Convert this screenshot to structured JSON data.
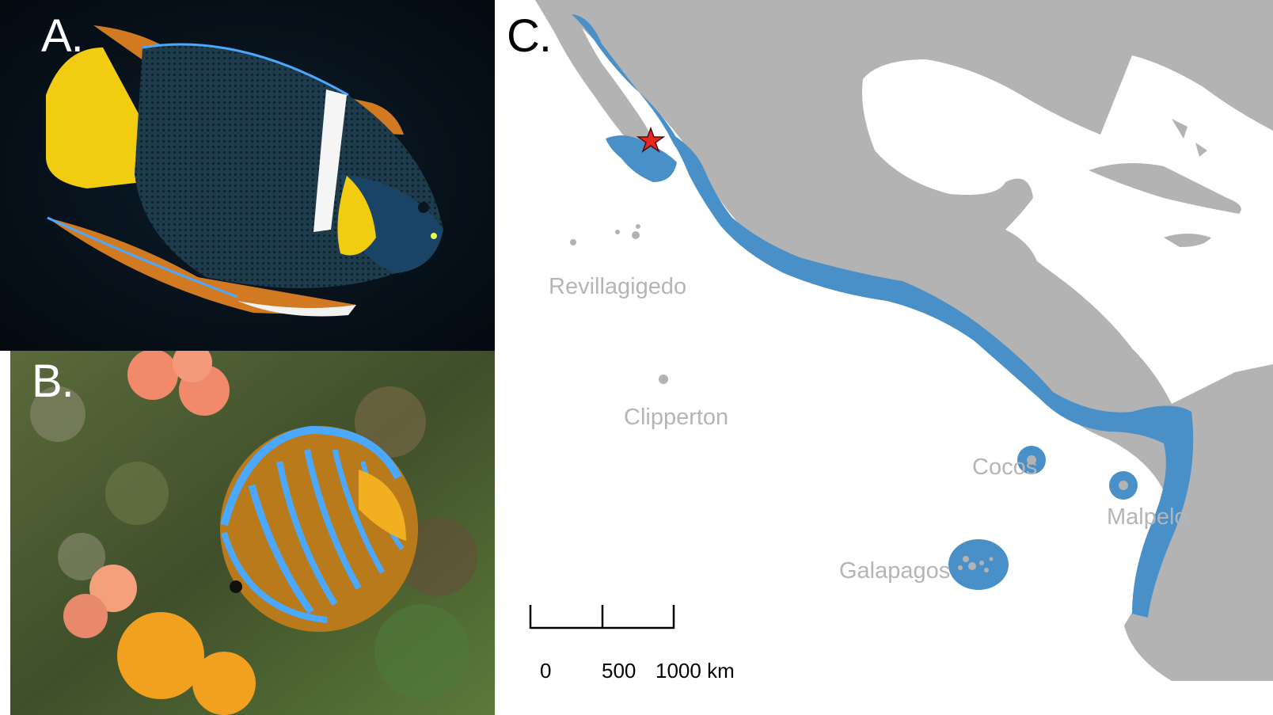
{
  "panels": {
    "a": {
      "letter": "A."
    },
    "b": {
      "letter": "B."
    },
    "c": {
      "letter": "C."
    }
  },
  "map": {
    "locations": {
      "revillagigedo": "Revillagigedo",
      "clipperton": "Clipperton",
      "cocos": "Cocos",
      "malpelo": "Malpelo",
      "galapagos": "Galapagos"
    },
    "scale_bar": {
      "tick_0": "0",
      "tick_500": "500",
      "tick_1000": "1000 km"
    },
    "colors": {
      "land": "#b3b3b3",
      "sea": "#ffffff",
      "range": "#4a90c8",
      "marker": "#e8281e"
    },
    "marker_icon": "star-icon"
  }
}
